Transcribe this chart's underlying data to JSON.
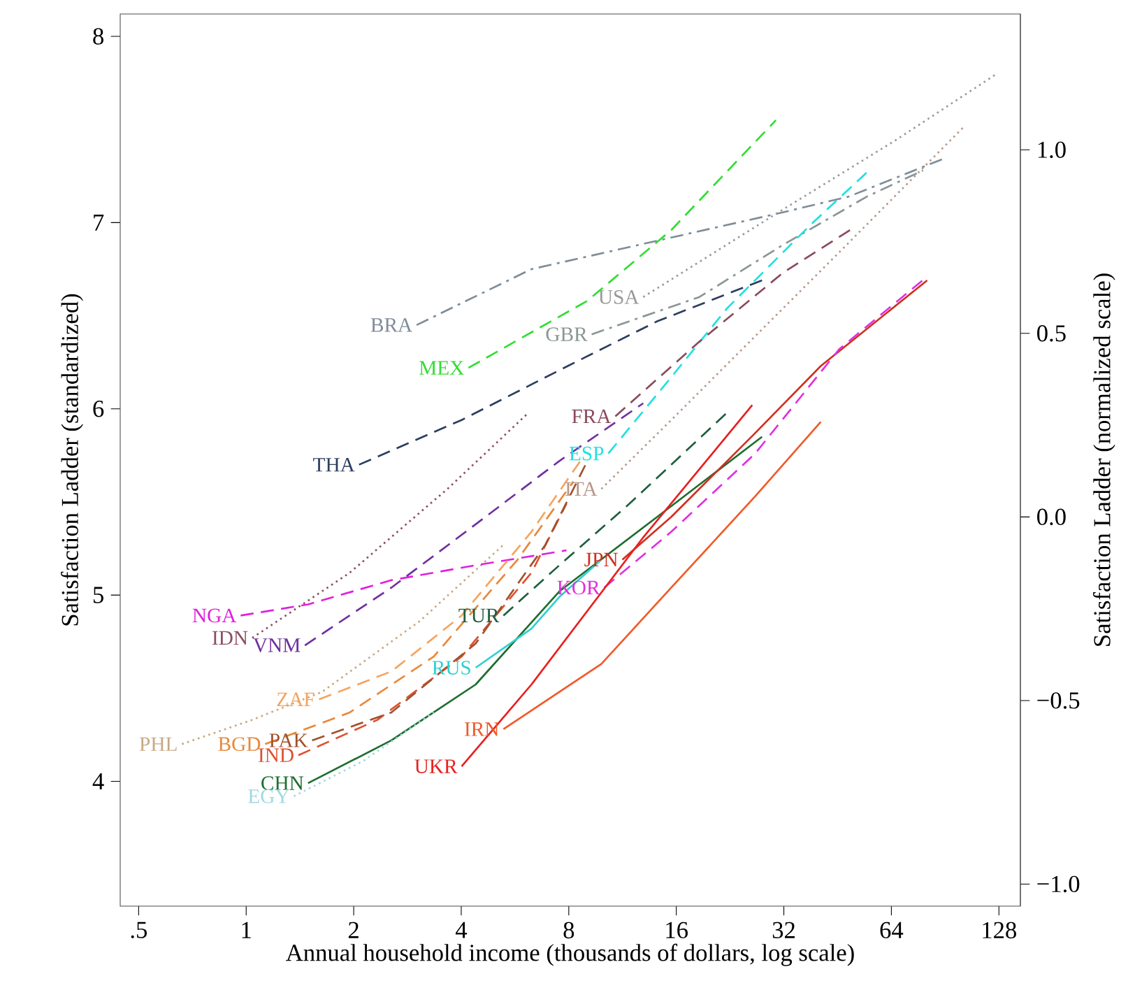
{
  "chart_data": {
    "type": "line",
    "xlabel": "Annual household income (thousands of dollars, log scale)",
    "ylabel": "Satisfaction Ladder (standardized)",
    "y2label": "Satisfaction Ladder (normalized scale)",
    "log": "x",
    "marker": "none",
    "xlim": [
      0.444,
      147
    ],
    "ylim": [
      3.33,
      8.12
    ],
    "y2lim": [
      -1.06,
      1.37
    ],
    "xticks": [
      {
        "value": 0.5,
        "label": ".5"
      },
      1,
      2,
      4,
      8,
      16,
      32,
      64,
      128
    ],
    "yticks": [
      4,
      5,
      6,
      7,
      8
    ],
    "y2ticks": [
      {
        "value": -1,
        "label": "−1.0"
      },
      {
        "value": -0.5,
        "label": "−0.5"
      },
      {
        "value": 0,
        "label": "0.0"
      },
      {
        "value": 0.5,
        "label": "0.5"
      },
      {
        "value": 1,
        "label": "1.0"
      }
    ],
    "series": [
      {
        "name": "BRA",
        "color": "#7f8c99",
        "line_style": "dashdot",
        "x": [
          3.0,
          6.29,
          31.0,
          48.7,
          91.5
        ],
        "values": [
          6.45,
          6.75,
          7.05,
          7.14,
          7.35
        ]
      },
      {
        "name": "GBR",
        "color": "#8a9696",
        "line_style": "dashdot",
        "x": [
          9.27,
          18.55,
          31.8,
          54.7,
          78.5
        ],
        "values": [
          6.4,
          6.6,
          6.88,
          7.14,
          7.28
        ]
      },
      {
        "name": "USA",
        "color": "#9a9a9a",
        "line_style": "dotted",
        "x": [
          12.93,
          31.8,
          65.5,
          126.5
        ],
        "values": [
          6.6,
          7.07,
          7.44,
          7.8
        ]
      },
      {
        "name": "MEX",
        "color": "#33dd33",
        "line_style": "dashed",
        "x": [
          4.19,
          9.02,
          15.49,
          30.4
        ],
        "values": [
          6.22,
          6.58,
          6.96,
          7.55
        ]
      },
      {
        "name": "THA",
        "color": "#2c3e60",
        "line_style": "dashed",
        "x": [
          2.07,
          4.01,
          7.95,
          14.15,
          27.8
        ],
        "values": [
          5.7,
          5.94,
          6.23,
          6.47,
          6.69
        ]
      },
      {
        "name": "PHL",
        "color": "#c8a882",
        "line_style": "dotted",
        "x": [
          0.661,
          1.04,
          1.63,
          3.06,
          5.25
        ],
        "values": [
          4.2,
          4.33,
          4.48,
          4.86,
          5.27
        ]
      },
      {
        "name": "IDN",
        "color": "#8b5060",
        "line_style": "dotted",
        "x": [
          1.04,
          1.95,
          3.66,
          6.18
        ],
        "values": [
          4.77,
          5.12,
          5.57,
          5.98
        ]
      },
      {
        "name": "NGA",
        "color": "#e020e0",
        "line_style": "dashed",
        "x": [
          0.965,
          1.49,
          2.55,
          4.39,
          7.88
        ],
        "values": [
          4.89,
          4.95,
          5.08,
          5.16,
          5.24
        ]
      },
      {
        "name": "VNM",
        "color": "#7030a0",
        "line_style": "dashed",
        "x": [
          1.46,
          2.55,
          4.39,
          7.53,
          12.93
        ],
        "values": [
          4.73,
          5.04,
          5.38,
          5.72,
          6.03
        ]
      },
      {
        "name": "ZAF",
        "color": "#f4a460",
        "line_style": "dashed",
        "x": [
          1.6,
          2.55,
          4.01,
          6.29,
          8.62
        ],
        "values": [
          4.44,
          4.59,
          4.89,
          5.34,
          5.72
        ]
      },
      {
        "name": "BGD",
        "color": "#e8883a",
        "line_style": "dashed",
        "x": [
          1.13,
          1.95,
          3.35,
          5.75,
          8.24
        ],
        "values": [
          4.2,
          4.37,
          4.67,
          5.19,
          5.61
        ]
      },
      {
        "name": "IND",
        "color": "#e05030",
        "line_style": "dashed",
        "x": [
          1.4,
          2.33,
          4.01,
          6.29,
          7.88
        ],
        "values": [
          4.14,
          4.33,
          4.67,
          5.12,
          5.49
        ]
      },
      {
        "name": "PAK",
        "color": "#a0522d",
        "line_style": "dashed",
        "x": [
          1.53,
          2.55,
          4.39,
          6.88,
          9.02
        ],
        "values": [
          4.22,
          4.37,
          4.74,
          5.27,
          5.72
        ]
      },
      {
        "name": "CHN",
        "color": "#1e6e30",
        "line_style": "solid",
        "x": [
          1.49,
          2.55,
          4.39,
          7.53,
          14.15,
          27.8
        ],
        "values": [
          3.99,
          4.22,
          4.52,
          5.02,
          5.42,
          5.85
        ]
      },
      {
        "name": "EGY",
        "color": "#9fd8e0",
        "line_style": "dotted",
        "x": [
          1.36,
          2.13,
          3.35
        ],
        "values": [
          3.92,
          4.11,
          4.37
        ]
      },
      {
        "name": "TUR",
        "color": "#1f5f3f",
        "line_style": "dashed",
        "x": [
          5.25,
          7.53,
          11.82,
          22.2
        ],
        "values": [
          4.89,
          5.16,
          5.49,
          5.98
        ]
      },
      {
        "name": "RUS",
        "color": "#30d0d0",
        "line_style": "solid",
        "x": [
          4.39,
          6.29,
          7.53,
          9.87
        ],
        "values": [
          4.61,
          4.82,
          4.99,
          5.19
        ]
      },
      {
        "name": "ESP",
        "color": "#20e0e0",
        "line_style": "dashed",
        "x": [
          10.32,
          15.49,
          22.2,
          38.1,
          54.7
        ],
        "values": [
          5.76,
          6.17,
          6.54,
          6.99,
          7.27
        ]
      },
      {
        "name": "FRA",
        "color": "#8b4a5a",
        "line_style": "dashed",
        "x": [
          10.8,
          18.55,
          31.8,
          50.0
        ],
        "values": [
          5.96,
          6.36,
          6.73,
          6.97
        ]
      },
      {
        "name": "ITA",
        "color": "#b89888",
        "line_style": "dotted",
        "x": [
          9.87,
          15.49,
          26.6,
          45.7,
          102.8
        ],
        "values": [
          5.57,
          5.94,
          6.39,
          6.84,
          7.52
        ]
      },
      {
        "name": "JPN",
        "color": "#d03020",
        "line_style": "solid",
        "x": [
          11.3,
          15.49,
          26.6,
          40.6,
          54.7,
          80.6
        ],
        "values": [
          5.19,
          5.42,
          5.87,
          6.23,
          6.43,
          6.69
        ]
      },
      {
        "name": "KOR",
        "color": "#e030e0",
        "line_style": "dashed",
        "x": [
          10.05,
          15.49,
          26.6,
          45.7,
          80.6
        ],
        "values": [
          5.04,
          5.34,
          5.76,
          6.32,
          6.71
        ]
      },
      {
        "name": "UKR",
        "color": "#e82020",
        "line_style": "solid",
        "x": [
          4.01,
          6.29,
          12.93,
          26.1
        ],
        "values": [
          4.08,
          4.52,
          5.31,
          6.02
        ]
      },
      {
        "name": "IRN",
        "color": "#f05a28",
        "line_style": "solid",
        "x": [
          5.25,
          9.87,
          15.49,
          26.6,
          40.6
        ],
        "values": [
          4.28,
          4.63,
          5.04,
          5.53,
          5.93
        ]
      }
    ]
  }
}
